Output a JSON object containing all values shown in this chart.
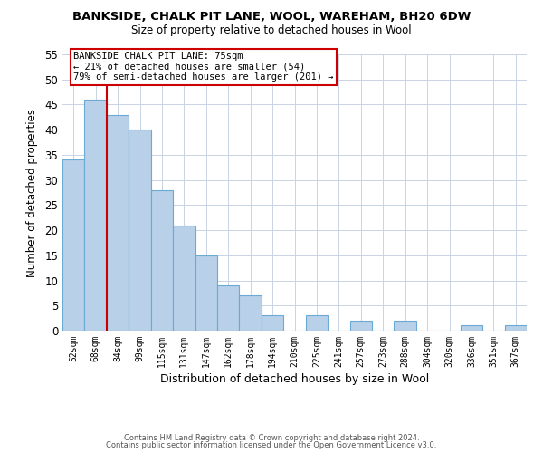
{
  "title": "BANKSIDE, CHALK PIT LANE, WOOL, WAREHAM, BH20 6DW",
  "subtitle": "Size of property relative to detached houses in Wool",
  "xlabel": "Distribution of detached houses by size in Wool",
  "ylabel": "Number of detached properties",
  "bin_labels": [
    "52sqm",
    "68sqm",
    "84sqm",
    "99sqm",
    "115sqm",
    "131sqm",
    "147sqm",
    "162sqm",
    "178sqm",
    "194sqm",
    "210sqm",
    "225sqm",
    "241sqm",
    "257sqm",
    "273sqm",
    "288sqm",
    "304sqm",
    "320sqm",
    "336sqm",
    "351sqm",
    "367sqm"
  ],
  "bar_values": [
    34,
    46,
    43,
    40,
    28,
    21,
    15,
    9,
    7,
    3,
    0,
    3,
    0,
    2,
    0,
    2,
    0,
    0,
    1,
    0,
    1
  ],
  "bar_color": "#b8d0e8",
  "bar_edge_color": "#6aaad4",
  "vline_x": 2,
  "vline_color": "#cc0000",
  "ylim": [
    0,
    55
  ],
  "yticks": [
    0,
    5,
    10,
    15,
    20,
    25,
    30,
    35,
    40,
    45,
    50,
    55
  ],
  "annotation_title": "BANKSIDE CHALK PIT LANE: 75sqm",
  "annotation_line1": "← 21% of detached houses are smaller (54)",
  "annotation_line2": "79% of semi-detached houses are larger (201) →",
  "annotation_box_color": "#ffffff",
  "annotation_box_edge": "#cc0000",
  "footer_line1": "Contains HM Land Registry data © Crown copyright and database right 2024.",
  "footer_line2": "Contains public sector information licensed under the Open Government Licence v3.0.",
  "background_color": "#ffffff",
  "grid_color": "#c8d4e4"
}
